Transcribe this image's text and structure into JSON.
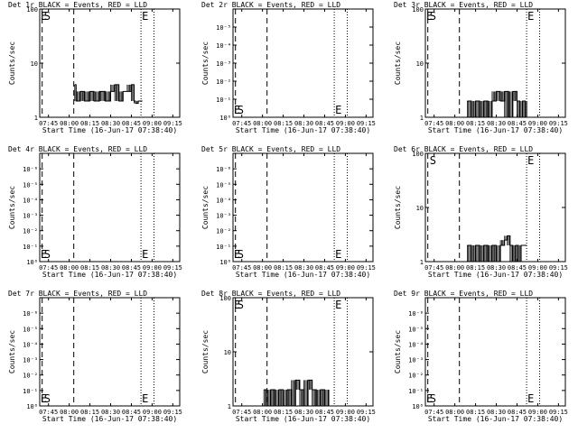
{
  "chart_data": [
    {
      "type": "line",
      "title": "Det 1r BLACK = Events, RED = LLD",
      "xlabel": "Start Time (16-Jun-17 07:38:40)",
      "ylabel": "Counts/sec",
      "x_tick_labels": [
        "07:45",
        "08:00",
        "08:15",
        "08:30",
        "08:45",
        "09:00",
        "09:15"
      ],
      "y_tick_labels": [
        "1",
        "10",
        "100"
      ],
      "ylim": [
        1,
        100
      ],
      "ylog": true,
      "markers": {
        "S": "07:45",
        "E": "08:50"
      },
      "series": [
        {
          "color": "#000000",
          "points": [
            [
              "08:04",
              4
            ],
            [
              "08:05",
              2
            ],
            [
              "08:08",
              3
            ],
            [
              "08:11",
              2
            ],
            [
              "08:15",
              3
            ],
            [
              "08:18",
              2
            ],
            [
              "08:22",
              3
            ],
            [
              "08:26",
              2
            ],
            [
              "08:30",
              3
            ],
            [
              "08:33",
              4
            ],
            [
              "08:36",
              2
            ],
            [
              "08:39",
              3
            ],
            [
              "08:42",
              3
            ],
            [
              "08:45",
              4
            ],
            [
              "08:47",
              2
            ],
            [
              "08:48",
              1.8
            ],
            [
              "08:50",
              2
            ],
            [
              "08:53",
              2
            ]
          ]
        }
      ]
    },
    {
      "type": "line",
      "title": "Det 2r BLACK = Events, RED = LLD",
      "xlabel": "Start Time (16-Jun-17 07:38:40)",
      "ylabel": "Counts/sec",
      "x_tick_labels": [
        "07:45",
        "08:00",
        "08:15",
        "08:30",
        "08:45",
        "09:00",
        "09:15"
      ],
      "y_tick_labels": [
        "10⁰",
        "10⁻¹",
        "10⁻²",
        "10⁻³",
        "10⁻⁴",
        "10⁻⁵"
      ],
      "ylim": [
        0.1,
        100000
      ],
      "ylog": true,
      "markers": {
        "S": "07:45",
        "E": "08:50"
      },
      "series": []
    },
    {
      "type": "line",
      "title": "Det 3r BLACK = Events, RED = LLD",
      "xlabel": "Start Time (16-Jun-17 07:38:40)",
      "ylabel": "Counts/sec",
      "x_tick_labels": [
        "07:45",
        "08:00",
        "08:15",
        "08:30",
        "08:45",
        "09:00",
        "09:15"
      ],
      "y_tick_labels": [
        "1",
        "10",
        "100"
      ],
      "ylim": [
        1,
        100
      ],
      "ylog": true,
      "markers": {
        "S": "07:45",
        "E": "08:50"
      },
      "series": [
        {
          "color": "#000000",
          "points": [
            [
              "08:09",
              2
            ],
            [
              "08:12",
              1
            ],
            [
              "08:15",
              2
            ],
            [
              "08:18",
              1
            ],
            [
              "08:21",
              2
            ],
            [
              "08:24",
              1
            ],
            [
              "08:27",
              2
            ],
            [
              "08:30",
              3
            ],
            [
              "08:33",
              2
            ],
            [
              "08:36",
              3
            ],
            [
              "08:39",
              1
            ],
            [
              "08:42",
              3
            ],
            [
              "08:45",
              2
            ],
            [
              "08:47",
              1
            ],
            [
              "08:49",
              2
            ],
            [
              "08:51",
              1
            ],
            [
              "08:52",
              2
            ]
          ]
        }
      ]
    },
    {
      "type": "line",
      "title": "Det 4r BLACK = Events, RED = LLD",
      "xlabel": "Start Time (16-Jun-17 07:38:40)",
      "ylabel": "Counts/sec",
      "x_tick_labels": [
        "07:45",
        "08:00",
        "08:15",
        "08:30",
        "08:45",
        "09:00",
        "09:15"
      ],
      "y_tick_labels": [
        "10⁰",
        "10⁻¹",
        "10⁻²",
        "10⁻³",
        "10⁻⁴",
        "10⁻⁵",
        "10⁻⁶"
      ],
      "ylim": [
        0.1,
        1000000
      ],
      "ylog": true,
      "markers": {
        "S": "07:45",
        "E": "08:50"
      },
      "series": []
    },
    {
      "type": "line",
      "title": "Det 5r BLACK = Events, RED = LLD",
      "xlabel": "Start Time (16-Jun-17 07:38:40)",
      "ylabel": "Counts/sec",
      "x_tick_labels": [
        "07:45",
        "08:00",
        "08:15",
        "08:30",
        "08:45",
        "09:00",
        "09:15"
      ],
      "y_tick_labels": [
        "10⁰",
        "10⁻¹",
        "10⁻²",
        "10⁻³",
        "10⁻⁴",
        "10⁻⁵",
        "10⁻⁶"
      ],
      "ylim": [
        0.1,
        1000000
      ],
      "ylog": true,
      "markers": {
        "S": "07:45",
        "E": "08:50"
      },
      "series": []
    },
    {
      "type": "line",
      "title": "Det 6r BLACK = Events, RED = LLD",
      "xlabel": "Start Time (16-Jun-17 07:38:40)",
      "ylabel": "Counts/sec",
      "x_tick_labels": [
        "07:45",
        "08:00",
        "08:15",
        "08:30",
        "08:45",
        "09:00",
        "09:15"
      ],
      "y_tick_labels": [
        "1",
        "10",
        "100"
      ],
      "ylim": [
        1,
        100
      ],
      "ylog": true,
      "markers": {
        "S": "07:45",
        "E": "08:50"
      },
      "series": [
        {
          "color": "#000000",
          "points": [
            [
              "08:09",
              2
            ],
            [
              "08:12",
              1
            ],
            [
              "08:15",
              2
            ],
            [
              "08:18",
              1
            ],
            [
              "08:21",
              2
            ],
            [
              "08:24",
              1
            ],
            [
              "08:27",
              2
            ],
            [
              "08:30",
              1
            ],
            [
              "08:33",
              2
            ],
            [
              "08:36",
              2.5
            ],
            [
              "08:38",
              3
            ],
            [
              "08:40",
              2
            ],
            [
              "08:42",
              1
            ],
            [
              "08:44",
              2
            ],
            [
              "08:46",
              1
            ],
            [
              "08:48",
              2
            ],
            [
              "08:52",
              2
            ]
          ]
        }
      ]
    },
    {
      "type": "line",
      "title": "Det 7r BLACK = Events, RED = LLD",
      "xlabel": "Start Time (16-Jun-17 07:38:40)",
      "ylabel": "Counts/sec",
      "x_tick_labels": [
        "07:45",
        "08:00",
        "08:15",
        "08:30",
        "08:45",
        "09:00",
        "09:15"
      ],
      "y_tick_labels": [
        "10⁰",
        "10⁻¹",
        "10⁻²",
        "10⁻³",
        "10⁻⁴",
        "10⁻⁵",
        "10⁻⁶"
      ],
      "ylim": [
        0.1,
        1000000
      ],
      "ylog": true,
      "markers": {
        "S": "07:45",
        "E": "08:50"
      },
      "series": []
    },
    {
      "type": "line",
      "title": "Det 8r BLACK = Events, RED = LLD",
      "xlabel": "Start Time (16-Jun-17 07:38:40)",
      "ylabel": "Counts/sec",
      "x_tick_labels": [
        "07:45",
        "08:00",
        "08:15",
        "08:30",
        "08:45",
        "09:00",
        "09:15"
      ],
      "y_tick_labels": [
        "1",
        "10",
        "100"
      ],
      "ylim": [
        1,
        100
      ],
      "ylog": true,
      "markers": {
        "S": "07:45",
        "E": "08:50"
      },
      "series": [
        {
          "color": "#000000",
          "points": [
            [
              "08:01",
              2
            ],
            [
              "08:03",
              1
            ],
            [
              "08:06",
              2
            ],
            [
              "08:09",
              1
            ],
            [
              "08:12",
              2
            ],
            [
              "08:15",
              1
            ],
            [
              "08:18",
              2
            ],
            [
              "08:21",
              1
            ],
            [
              "08:24",
              3
            ],
            [
              "08:27",
              2
            ],
            [
              "08:30",
              1
            ],
            [
              "08:33",
              3
            ],
            [
              "08:36",
              2
            ],
            [
              "08:39",
              1
            ],
            [
              "08:42",
              2
            ],
            [
              "08:45",
              1
            ],
            [
              "08:48",
              2
            ]
          ]
        }
      ]
    },
    {
      "type": "line",
      "title": "Det 9r BLACK = Events, RED = LLD",
      "xlabel": "Start Time (16-Jun-17 07:38:40)",
      "ylabel": "Counts/sec",
      "x_tick_labels": [
        "07:45",
        "08:00",
        "08:15",
        "08:30",
        "08:45",
        "09:00",
        "09:15"
      ],
      "y_tick_labels": [
        "10⁰",
        "10⁻¹",
        "10⁻²",
        "10⁻³",
        "10⁻⁴",
        "10⁻⁵",
        "10⁻⁶"
      ],
      "ylim": [
        0.1,
        1000000
      ],
      "ylog": true,
      "markers": {
        "S": "07:45",
        "E": "08:50"
      },
      "series": []
    }
  ]
}
